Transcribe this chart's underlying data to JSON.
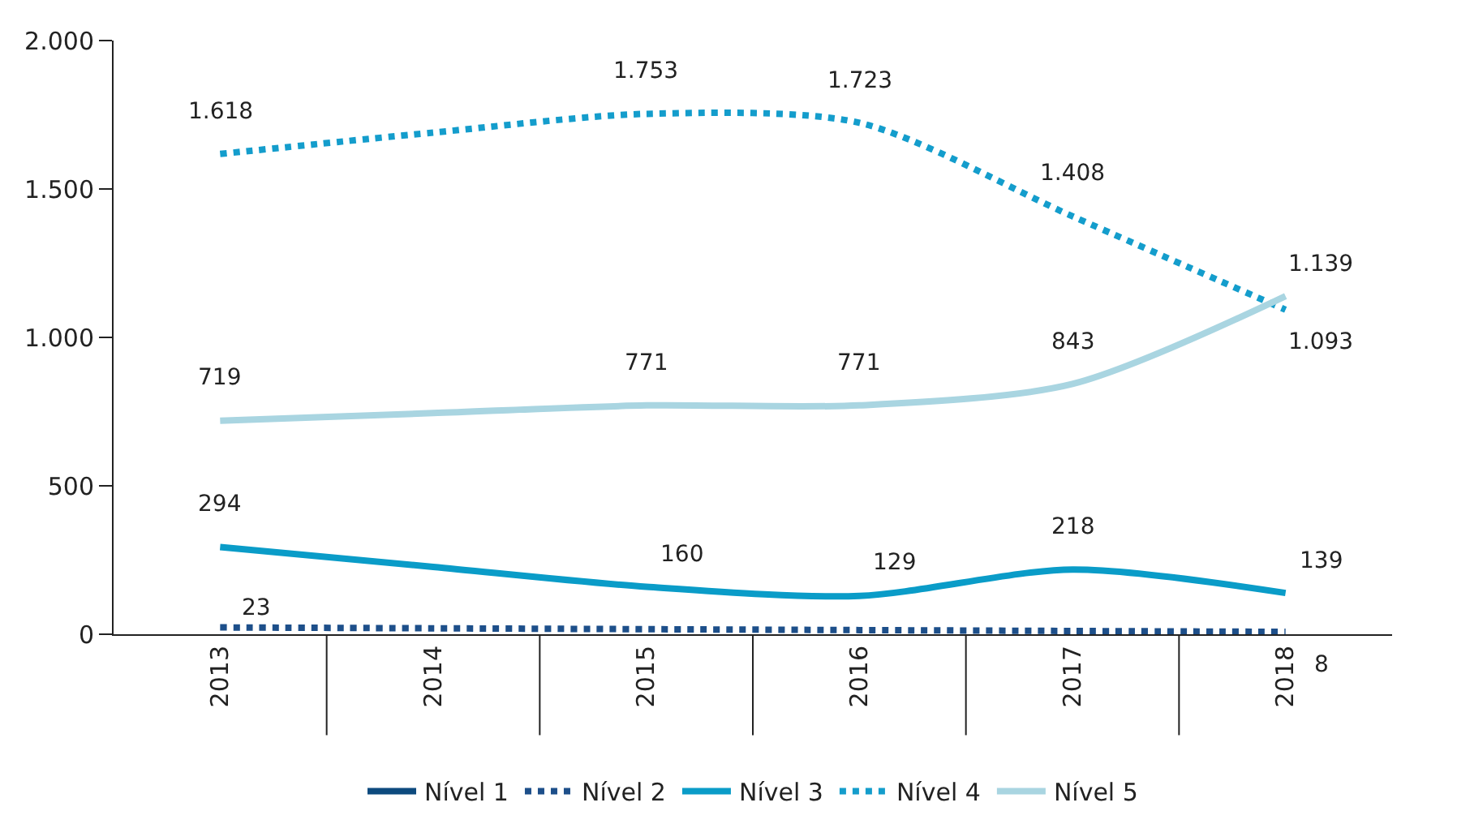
{
  "chart_data": {
    "type": "line",
    "categories": [
      "2013",
      "2014",
      "2015",
      "2016",
      "2017",
      "2018"
    ],
    "ylim": [
      0,
      2000
    ],
    "yticks": [
      {
        "value": 0,
        "label": "0"
      },
      {
        "value": 500,
        "label": "500"
      },
      {
        "value": 1000,
        "label": "1.000"
      },
      {
        "value": 1500,
        "label": "1.500"
      },
      {
        "value": 2000,
        "label": "2.000"
      }
    ],
    "legend": "bottom",
    "series": [
      {
        "name": "Nível 1",
        "color": "#0d4a7e",
        "line_style": "solid",
        "values": [
          null,
          null,
          null,
          null,
          null,
          null
        ],
        "value_labels": [
          null,
          null,
          null,
          null,
          null,
          null
        ]
      },
      {
        "name": "Nível 2",
        "color": "#1d4f8a",
        "line_style": "dotted",
        "values": [
          23,
          20,
          17,
          14,
          11,
          8
        ],
        "value_labels": [
          "23",
          null,
          null,
          null,
          null,
          "8"
        ]
      },
      {
        "name": "Nível 3",
        "color": "#0a9cc8",
        "line_style": "solid",
        "values": [
          294,
          227,
          160,
          129,
          218,
          139
        ],
        "value_labels": [
          "294",
          null,
          "160",
          "129",
          "218",
          "139"
        ]
      },
      {
        "name": "Nível 4",
        "color": "#149dcc",
        "line_style": "dotted",
        "values": [
          1618,
          1690,
          1753,
          1723,
          1408,
          1093
        ],
        "value_labels": [
          "1.618",
          null,
          "1.753",
          "1.723",
          "1.408",
          "1.093"
        ]
      },
      {
        "name": "Nível 5",
        "color": "#a9d5e1",
        "line_style": "solid",
        "values": [
          719,
          745,
          771,
          771,
          843,
          1139
        ],
        "value_labels": [
          "719",
          null,
          "771",
          "771",
          "843",
          "1.139"
        ]
      }
    ]
  }
}
